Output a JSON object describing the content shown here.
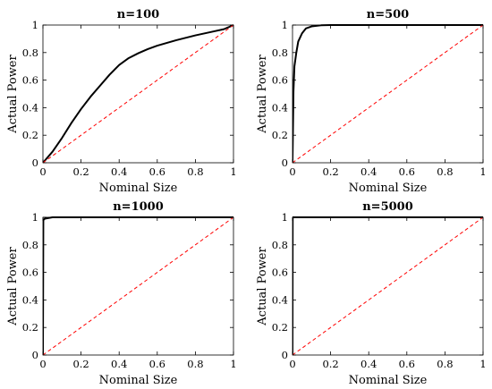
{
  "chart_data": [
    {
      "type": "line",
      "title": "n=100",
      "xlabel": "Nominal Size",
      "ylabel": "Actual Power",
      "xlim": [
        0,
        1
      ],
      "ylim": [
        0,
        1
      ],
      "xticks": [
        "0",
        "0.2",
        "0.4",
        "0.6",
        "0.8",
        "1"
      ],
      "yticks": [
        "0",
        "0.2",
        "0.4",
        "0.6",
        "0.8",
        "1"
      ],
      "grid": false,
      "series": [
        {
          "style": "solid",
          "color": "#000000",
          "x": [
            0,
            0.05,
            0.1,
            0.15,
            0.2,
            0.25,
            0.3,
            0.35,
            0.4,
            0.45,
            0.5,
            0.55,
            0.6,
            0.7,
            0.8,
            0.9,
            0.95,
            1
          ],
          "y": [
            0,
            0.08,
            0.18,
            0.29,
            0.39,
            0.48,
            0.56,
            0.64,
            0.71,
            0.76,
            0.795,
            0.825,
            0.85,
            0.89,
            0.925,
            0.955,
            0.97,
            1
          ]
        },
        {
          "style": "dashed",
          "color": "#ff0000",
          "x": [
            0,
            1
          ],
          "y": [
            0,
            1
          ]
        }
      ]
    },
    {
      "type": "line",
      "title": "n=500",
      "xlabel": "Nominal Size",
      "ylabel": "Actual Power",
      "xlim": [
        0,
        1
      ],
      "ylim": [
        0,
        1
      ],
      "xticks": [
        "0",
        "0.2",
        "0.4",
        "0.6",
        "0.8",
        "1"
      ],
      "yticks": [
        "0",
        "0.2",
        "0.4",
        "0.6",
        "0.8",
        "1"
      ],
      "grid": false,
      "series": [
        {
          "style": "solid",
          "color": "#000000",
          "x": [
            0,
            0.005,
            0.01,
            0.02,
            0.03,
            0.05,
            0.07,
            0.1,
            0.15,
            0.2,
            1
          ],
          "y": [
            0,
            0.52,
            0.7,
            0.8,
            0.88,
            0.94,
            0.975,
            0.99,
            0.998,
            1,
            1
          ]
        },
        {
          "style": "dashed",
          "color": "#ff0000",
          "x": [
            0,
            1
          ],
          "y": [
            0,
            1
          ]
        }
      ]
    },
    {
      "type": "line",
      "title": "n=1000",
      "xlabel": "Nominal Size",
      "ylabel": "Actual Power",
      "xlim": [
        0,
        1
      ],
      "ylim": [
        0,
        1
      ],
      "xticks": [
        "0",
        "0.2",
        "0.4",
        "0.6",
        "0.8",
        "1"
      ],
      "yticks": [
        "0",
        "0.2",
        "0.4",
        "0.6",
        "0.8",
        "1"
      ],
      "grid": false,
      "series": [
        {
          "style": "solid",
          "color": "#000000",
          "x": [
            0,
            0.002,
            0.01,
            0.05,
            1
          ],
          "y": [
            0,
            0.98,
            0.99,
            1,
            1
          ]
        },
        {
          "style": "dashed",
          "color": "#ff0000",
          "x": [
            0,
            1
          ],
          "y": [
            0,
            1
          ]
        }
      ]
    },
    {
      "type": "line",
      "title": "n=5000",
      "xlabel": "Nominal Size",
      "ylabel": "Actual Power",
      "xlim": [
        0,
        1
      ],
      "ylim": [
        0,
        1
      ],
      "xticks": [
        "0",
        "0.2",
        "0.4",
        "0.6",
        "0.8",
        "1"
      ],
      "yticks": [
        "0",
        "0.2",
        "0.4",
        "0.6",
        "0.8",
        "1"
      ],
      "grid": false,
      "series": [
        {
          "style": "solid",
          "color": "#000000",
          "x": [
            0,
            0.001,
            1
          ],
          "y": [
            0,
            1,
            1
          ]
        },
        {
          "style": "dashed",
          "color": "#ff0000",
          "x": [
            0,
            1
          ],
          "y": [
            0,
            1
          ]
        }
      ]
    }
  ]
}
